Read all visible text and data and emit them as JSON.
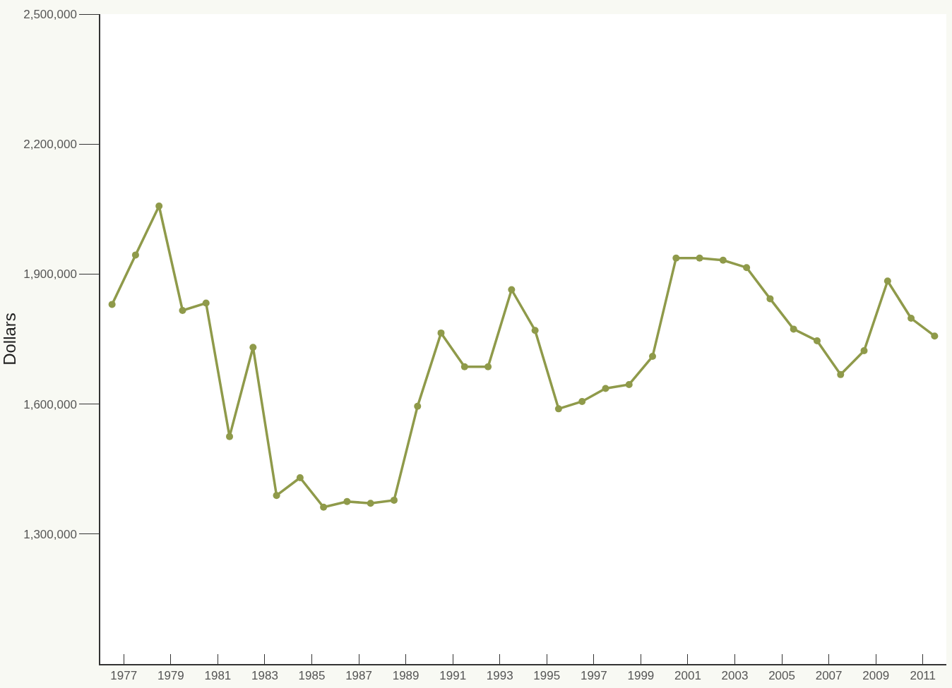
{
  "chart_data": {
    "type": "line",
    "ylabel": "Dollars",
    "x": [
      1976.5,
      1977.5,
      1978.5,
      1979.5,
      1980.5,
      1981.5,
      1982.5,
      1983.5,
      1984.5,
      1985.5,
      1986.5,
      1987.5,
      1988.5,
      1989.5,
      1990.5,
      1991.5,
      1992.5,
      1993.5,
      1994.5,
      1995.5,
      1996.5,
      1997.5,
      1998.5,
      1999.5,
      2000.5,
      2001.5,
      2002.5,
      2003.5,
      2004.5,
      2005.5,
      2006.5,
      2007.5,
      2008.5,
      2009.5,
      2010.5,
      2011.5
    ],
    "series": [
      {
        "color": "#8f9a4a",
        "values": [
          1830000,
          1944000,
          2057000,
          1816000,
          1833000,
          1525000,
          1731000,
          1389000,
          1430000,
          1362000,
          1375000,
          1371000,
          1378000,
          1595000,
          1764000,
          1686000,
          1686000,
          1864000,
          1770000,
          1589000,
          1606000,
          1636000,
          1645000,
          1710000,
          1937000,
          1937000,
          1932000,
          1915000,
          1843000,
          1773000,
          1746000,
          1668000,
          1723000,
          1884000,
          1798000,
          1757000
        ]
      }
    ],
    "xlim": [
      1976,
      2012
    ],
    "xticks": [
      1977,
      1979,
      1981,
      1983,
      1985,
      1987,
      1989,
      1991,
      1993,
      1995,
      1997,
      1999,
      2001,
      2003,
      2005,
      2007,
      2009,
      2011
    ],
    "ylim": [
      1000000,
      2500000
    ],
    "yticks": [
      {
        "value": 1300000,
        "label": "1,300,000"
      },
      {
        "value": 1600000,
        "label": "1,600,000"
      },
      {
        "value": 1900000,
        "label": "1,900,000"
      },
      {
        "value": 2200000,
        "label": "2,200,000"
      },
      {
        "value": 2500000,
        "label": "2,500,000"
      }
    ],
    "marker": "circle",
    "line_style": "solid"
  }
}
